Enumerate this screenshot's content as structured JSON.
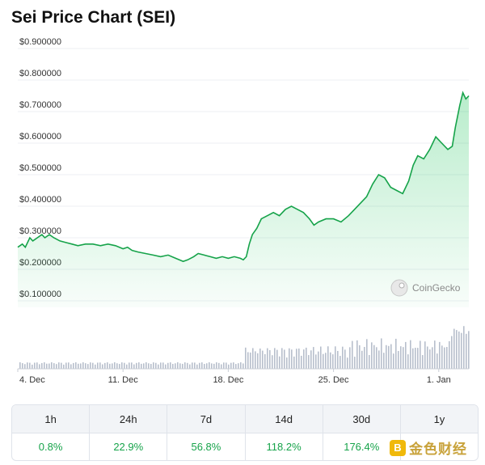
{
  "title": "Sei Price Chart (SEI)",
  "chart_data": {
    "type": "area",
    "y_ticks": [
      "$0.900000",
      "$0.800000",
      "$0.700000",
      "$0.600000",
      "$0.500000",
      "$0.400000",
      "$0.300000",
      "$0.200000",
      "$0.100000"
    ],
    "y_tick_values": [
      0.9,
      0.8,
      0.7,
      0.6,
      0.5,
      0.4,
      0.3,
      0.2,
      0.1
    ],
    "ylim": [
      0.1,
      0.9
    ],
    "x_ticks": [
      "4. Dec",
      "11. Dec",
      "18. Dec",
      "25. Dec",
      "1. Jan"
    ],
    "x_tick_days": [
      0,
      7,
      14,
      21,
      28
    ],
    "xlim": [
      0,
      30
    ],
    "line_color": "#16a34a",
    "area_color": "#22c55e",
    "volume_color": "#b7bfcc",
    "price": [
      [
        0.0,
        0.27
      ],
      [
        0.3,
        0.28
      ],
      [
        0.5,
        0.27
      ],
      [
        0.8,
        0.3
      ],
      [
        1.0,
        0.29
      ],
      [
        1.3,
        0.3
      ],
      [
        1.6,
        0.31
      ],
      [
        1.8,
        0.3
      ],
      [
        2.1,
        0.31
      ],
      [
        2.4,
        0.3
      ],
      [
        2.8,
        0.29
      ],
      [
        3.2,
        0.285
      ],
      [
        3.6,
        0.28
      ],
      [
        4.0,
        0.275
      ],
      [
        4.5,
        0.28
      ],
      [
        5.0,
        0.28
      ],
      [
        5.5,
        0.275
      ],
      [
        6.0,
        0.28
      ],
      [
        6.5,
        0.275
      ],
      [
        7.0,
        0.265
      ],
      [
        7.3,
        0.27
      ],
      [
        7.6,
        0.26
      ],
      [
        8.0,
        0.255
      ],
      [
        8.5,
        0.25
      ],
      [
        9.0,
        0.245
      ],
      [
        9.5,
        0.24
      ],
      [
        10.0,
        0.245
      ],
      [
        10.5,
        0.235
      ],
      [
        11.0,
        0.225
      ],
      [
        11.3,
        0.23
      ],
      [
        11.7,
        0.24
      ],
      [
        12.0,
        0.25
      ],
      [
        12.4,
        0.245
      ],
      [
        12.8,
        0.24
      ],
      [
        13.2,
        0.235
      ],
      [
        13.6,
        0.24
      ],
      [
        14.0,
        0.235
      ],
      [
        14.4,
        0.24
      ],
      [
        14.8,
        0.235
      ],
      [
        15.0,
        0.23
      ],
      [
        15.2,
        0.24
      ],
      [
        15.4,
        0.28
      ],
      [
        15.6,
        0.31
      ],
      [
        15.9,
        0.33
      ],
      [
        16.2,
        0.36
      ],
      [
        16.6,
        0.37
      ],
      [
        17.0,
        0.38
      ],
      [
        17.4,
        0.37
      ],
      [
        17.8,
        0.39
      ],
      [
        18.2,
        0.4
      ],
      [
        18.6,
        0.39
      ],
      [
        19.0,
        0.38
      ],
      [
        19.4,
        0.36
      ],
      [
        19.7,
        0.34
      ],
      [
        20.0,
        0.35
      ],
      [
        20.5,
        0.36
      ],
      [
        21.0,
        0.36
      ],
      [
        21.5,
        0.35
      ],
      [
        22.0,
        0.37
      ],
      [
        22.4,
        0.39
      ],
      [
        22.8,
        0.41
      ],
      [
        23.2,
        0.43
      ],
      [
        23.6,
        0.47
      ],
      [
        24.0,
        0.5
      ],
      [
        24.4,
        0.49
      ],
      [
        24.8,
        0.46
      ],
      [
        25.2,
        0.45
      ],
      [
        25.6,
        0.44
      ],
      [
        26.0,
        0.48
      ],
      [
        26.3,
        0.53
      ],
      [
        26.6,
        0.56
      ],
      [
        27.0,
        0.55
      ],
      [
        27.4,
        0.58
      ],
      [
        27.8,
        0.62
      ],
      [
        28.2,
        0.6
      ],
      [
        28.6,
        0.58
      ],
      [
        28.9,
        0.59
      ],
      [
        29.1,
        0.65
      ],
      [
        29.4,
        0.72
      ],
      [
        29.6,
        0.76
      ],
      [
        29.8,
        0.74
      ],
      [
        30.0,
        0.75
      ]
    ]
  },
  "watermark": {
    "text": "CoinGecko"
  },
  "performance": [
    {
      "period": "1h",
      "change": "0.8%"
    },
    {
      "period": "24h",
      "change": "22.9%"
    },
    {
      "period": "7d",
      "change": "56.8%"
    },
    {
      "period": "14d",
      "change": "118.2%"
    },
    {
      "period": "30d",
      "change": "176.4%"
    },
    {
      "period": "1y",
      "change": ""
    }
  ],
  "footer_logo": {
    "text": "金色财经",
    "icon": "jinse-logo-icon"
  }
}
